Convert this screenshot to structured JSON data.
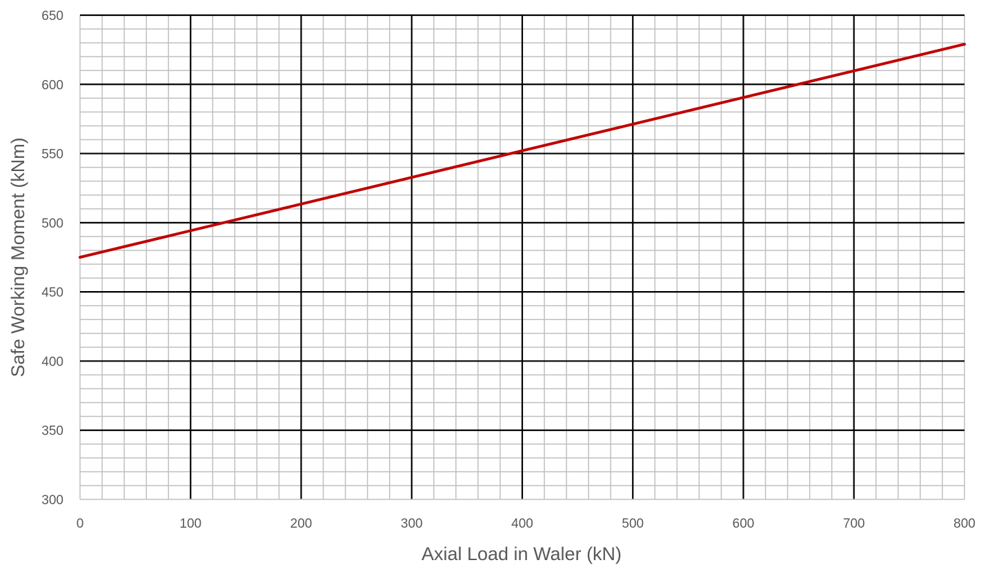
{
  "chart_data": {
    "type": "line",
    "title": "",
    "xlabel": "Axial Load in Waler (kN)",
    "ylabel": "Safe Working Moment (kNm)",
    "xlim": [
      0,
      800
    ],
    "ylim": [
      300,
      650
    ],
    "x_ticks": [
      0,
      100,
      200,
      300,
      400,
      500,
      600,
      700,
      800
    ],
    "y_ticks": [
      300,
      350,
      400,
      450,
      500,
      550,
      600,
      650
    ],
    "x_tick_labels": [
      "0",
      "100",
      "200",
      "300",
      "400",
      "500",
      "600",
      "700",
      "800"
    ],
    "y_tick_labels": [
      "300",
      "350",
      "400",
      "450",
      "500",
      "550",
      "600",
      "650"
    ],
    "x_minor_step": 20,
    "y_minor_step": 10,
    "grid": true,
    "legend": "none",
    "colors": {
      "series": "#c00000",
      "major_grid": "#000000",
      "minor_grid": "#bfbfbf",
      "text": "#595959"
    },
    "series": [
      {
        "x": [
          0,
          800
        ],
        "values": [
          475,
          629
        ]
      }
    ]
  }
}
